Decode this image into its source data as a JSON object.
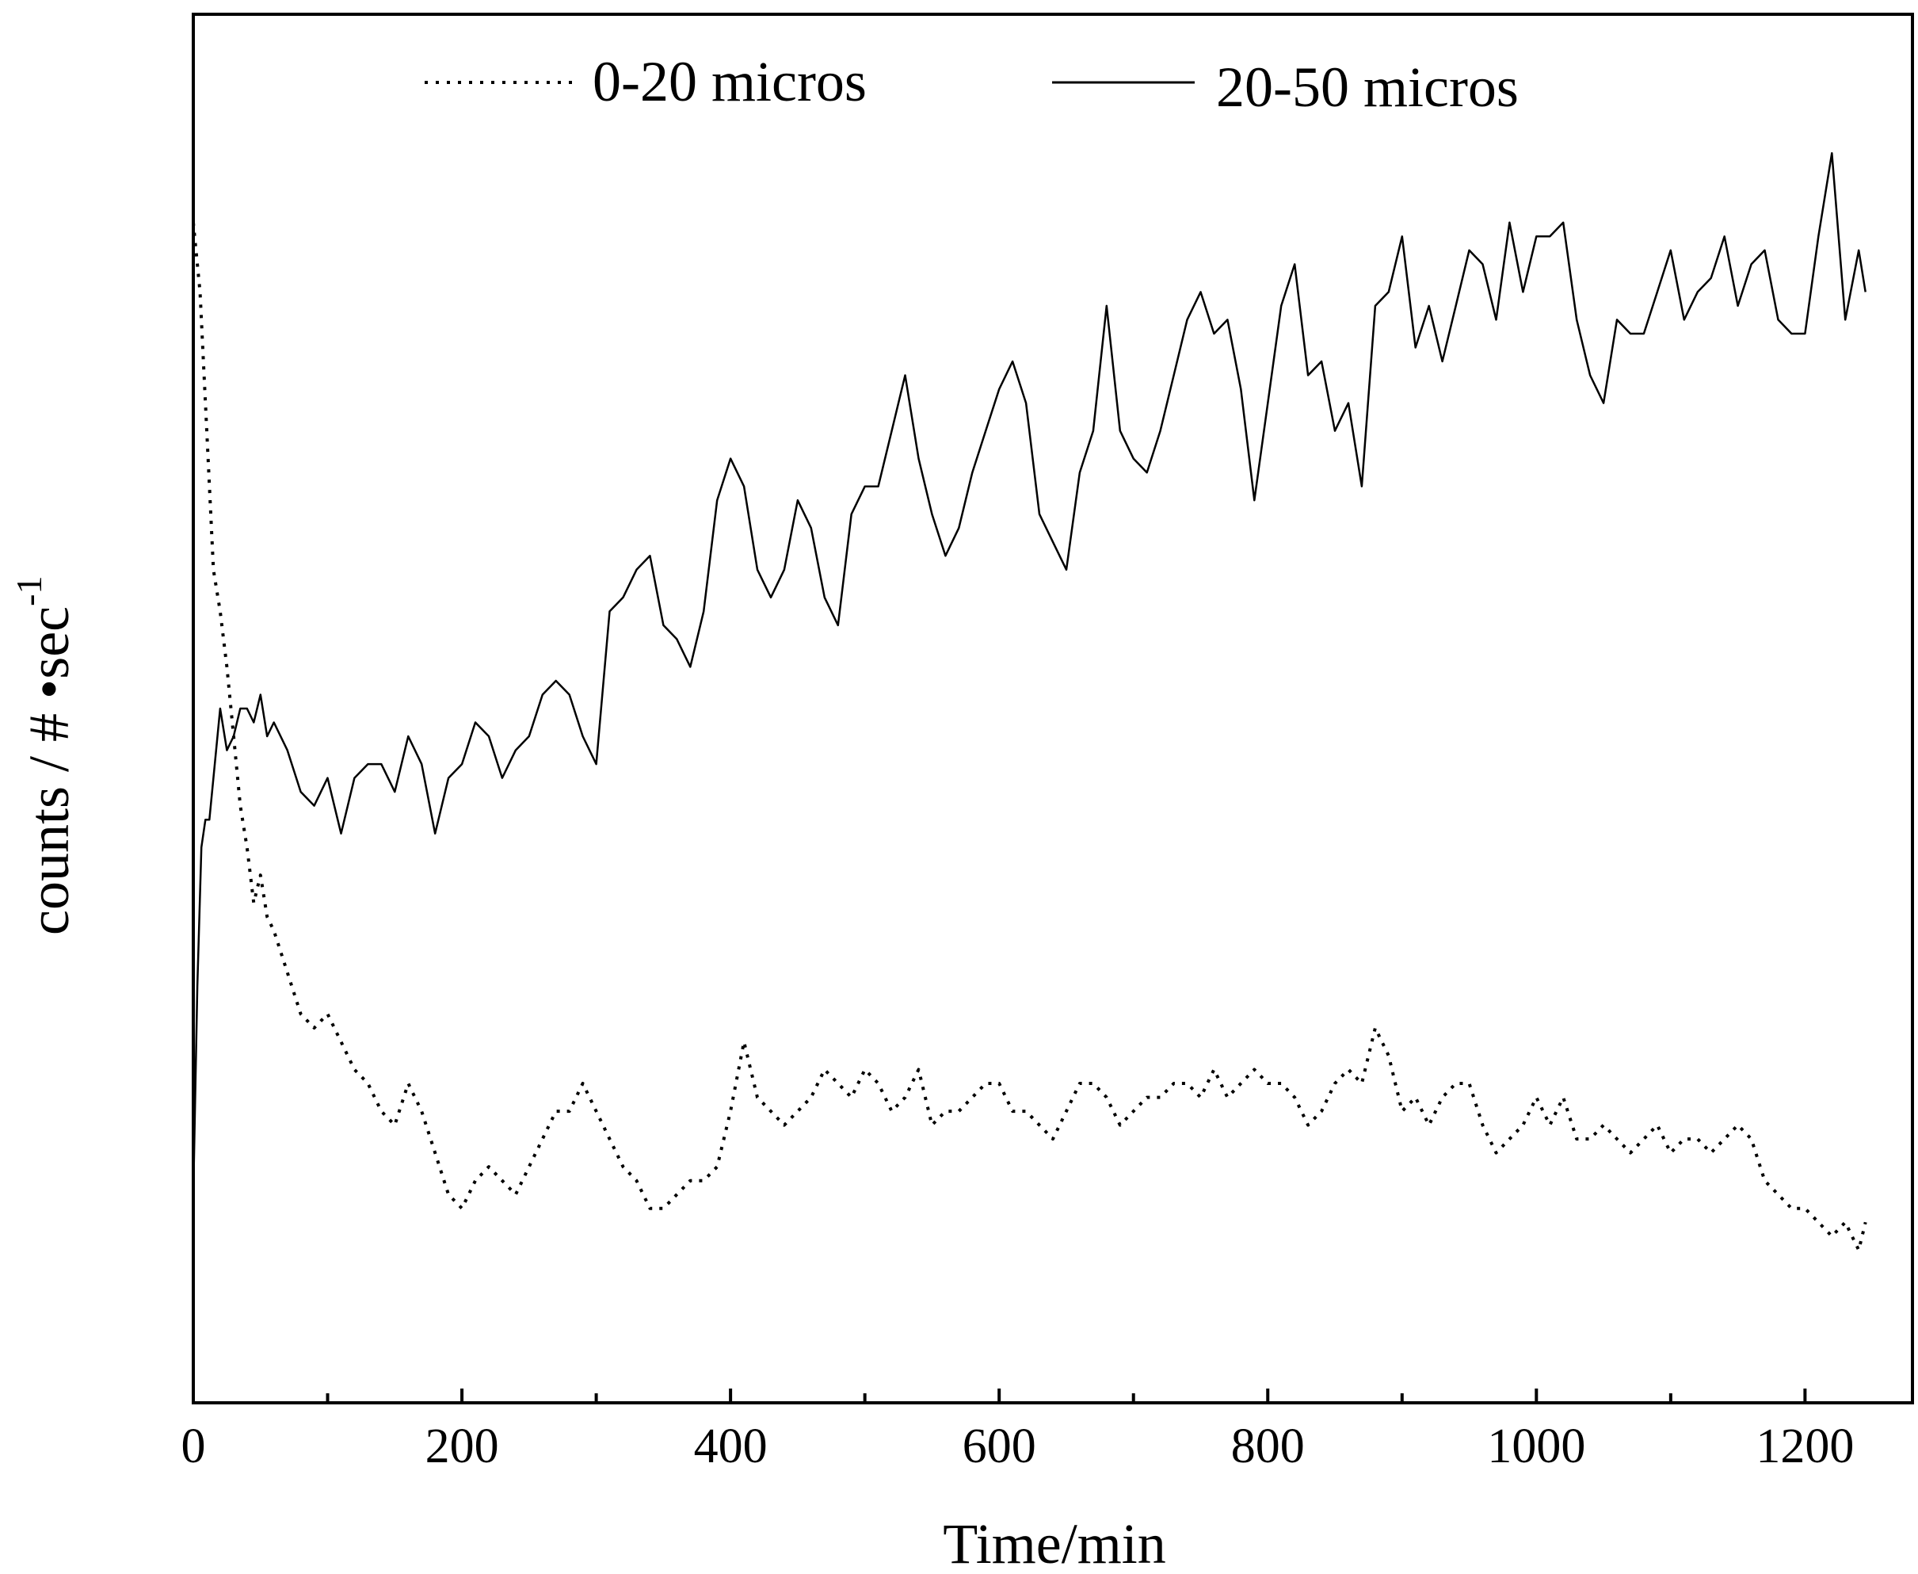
{
  "chart_data": {
    "type": "line",
    "title": "",
    "xlabel": "Time/min",
    "ylabel_main": "counts / # ",
    "ylabel_dot": "•",
    "ylabel_unit": "sec",
    "ylabel_exponent": "-1",
    "xlim": [
      0,
      1280
    ],
    "ylim": [
      0,
      100
    ],
    "y_tick_labels_shown": false,
    "x_ticks": [
      0,
      200,
      400,
      600,
      800,
      1000,
      1200
    ],
    "x_tick_labels": [
      "0",
      "200",
      "400",
      "600",
      "800",
      "1000",
      "1200"
    ],
    "x_minor_ticks": [
      100,
      300,
      500,
      700,
      900,
      1100
    ],
    "legend_position": "top",
    "line_color": "#000000",
    "series": [
      {
        "name": "0-20 micros",
        "style": "dotted",
        "x": [
          0,
          5,
          10,
          15,
          20,
          25,
          30,
          35,
          40,
          45,
          50,
          55,
          60,
          70,
          80,
          90,
          100,
          110,
          120,
          130,
          140,
          150,
          160,
          170,
          180,
          190,
          200,
          210,
          220,
          230,
          240,
          250,
          260,
          270,
          280,
          290,
          300,
          310,
          320,
          330,
          340,
          350,
          360,
          370,
          380,
          390,
          400,
          410,
          420,
          430,
          440,
          450,
          460,
          470,
          480,
          490,
          500,
          510,
          520,
          530,
          540,
          550,
          560,
          570,
          580,
          590,
          600,
          610,
          620,
          630,
          640,
          650,
          660,
          670,
          680,
          690,
          700,
          710,
          720,
          730,
          740,
          750,
          760,
          770,
          780,
          790,
          800,
          810,
          820,
          830,
          840,
          850,
          860,
          870,
          880,
          890,
          900,
          910,
          920,
          930,
          940,
          950,
          960,
          970,
          980,
          990,
          1000,
          1010,
          1020,
          1030,
          1040,
          1050,
          1060,
          1070,
          1080,
          1090,
          1100,
          1110,
          1120,
          1130,
          1140,
          1150,
          1160,
          1170,
          1180,
          1190,
          1200,
          1210,
          1220,
          1230,
          1240,
          1245
        ],
        "values": [
          85,
          80,
          70,
          60,
          57,
          53,
          48,
          43,
          40,
          36,
          38,
          35,
          34,
          31,
          28,
          27,
          28,
          26,
          24,
          23,
          21,
          20,
          23,
          21,
          18,
          15,
          14,
          16,
          17,
          16,
          15,
          17,
          19,
          21,
          21,
          23,
          21,
          19,
          17,
          16,
          14,
          14,
          15,
          16,
          16,
          17,
          21,
          26,
          22,
          21,
          20,
          21,
          22,
          24,
          23,
          22,
          24,
          23,
          21,
          22,
          24,
          20,
          21,
          21,
          22,
          23,
          23,
          21,
          21,
          20,
          19,
          21,
          23,
          23,
          22,
          20,
          21,
          22,
          22,
          23,
          23,
          22,
          24,
          22,
          23,
          24,
          23,
          23,
          22,
          20,
          21,
          23,
          24,
          23,
          27,
          25,
          21,
          22,
          20,
          22,
          23,
          23,
          20,
          18,
          19,
          20,
          22,
          20,
          22,
          19,
          19,
          20,
          19,
          18,
          19,
          20,
          18,
          19,
          19,
          18,
          19,
          20,
          19,
          16,
          15,
          14,
          14,
          13,
          12,
          13,
          11,
          13
        ]
      },
      {
        "name": "20-50 micros",
        "style": "solid",
        "x": [
          0,
          3,
          6,
          9,
          12,
          15,
          20,
          25,
          30,
          35,
          40,
          45,
          50,
          55,
          60,
          70,
          80,
          90,
          100,
          110,
          120,
          130,
          140,
          150,
          160,
          170,
          180,
          190,
          200,
          210,
          220,
          230,
          240,
          250,
          260,
          270,
          280,
          290,
          300,
          310,
          320,
          330,
          340,
          350,
          360,
          370,
          380,
          390,
          400,
          410,
          420,
          430,
          440,
          450,
          460,
          470,
          480,
          490,
          500,
          510,
          520,
          530,
          540,
          550,
          560,
          570,
          580,
          590,
          600,
          610,
          620,
          630,
          640,
          650,
          660,
          670,
          680,
          690,
          700,
          710,
          720,
          730,
          740,
          750,
          760,
          770,
          780,
          790,
          800,
          810,
          820,
          830,
          840,
          850,
          860,
          870,
          880,
          890,
          900,
          910,
          920,
          930,
          940,
          950,
          960,
          970,
          980,
          990,
          1000,
          1010,
          1020,
          1030,
          1040,
          1050,
          1060,
          1070,
          1080,
          1090,
          1100,
          1110,
          1120,
          1130,
          1140,
          1150,
          1160,
          1170,
          1180,
          1190,
          1200,
          1210,
          1220,
          1230,
          1240,
          1245
        ],
        "values": [
          15,
          30,
          40,
          42,
          42,
          45,
          50,
          47,
          48,
          50,
          50,
          49,
          51,
          48,
          49,
          47,
          44,
          43,
          45,
          41,
          45,
          46,
          46,
          44,
          48,
          46,
          41,
          45,
          46,
          49,
          48,
          45,
          47,
          48,
          51,
          52,
          51,
          48,
          46,
          57,
          58,
          60,
          61,
          56,
          55,
          53,
          57,
          65,
          68,
          66,
          60,
          58,
          60,
          65,
          63,
          58,
          56,
          64,
          66,
          66,
          70,
          74,
          68,
          64,
          61,
          63,
          67,
          70,
          73,
          75,
          72,
          64,
          62,
          60,
          67,
          70,
          79,
          70,
          68,
          67,
          70,
          74,
          78,
          80,
          77,
          78,
          73,
          65,
          72,
          79,
          82,
          74,
          75,
          70,
          72,
          66,
          79,
          80,
          84,
          76,
          79,
          75,
          79,
          83,
          82,
          78,
          85,
          80,
          84,
          84,
          85,
          78,
          74,
          72,
          78,
          77,
          77,
          80,
          83,
          78,
          80,
          81,
          84,
          79,
          82,
          83,
          78,
          77,
          77,
          84,
          90,
          78,
          83,
          80
        ]
      }
    ]
  }
}
